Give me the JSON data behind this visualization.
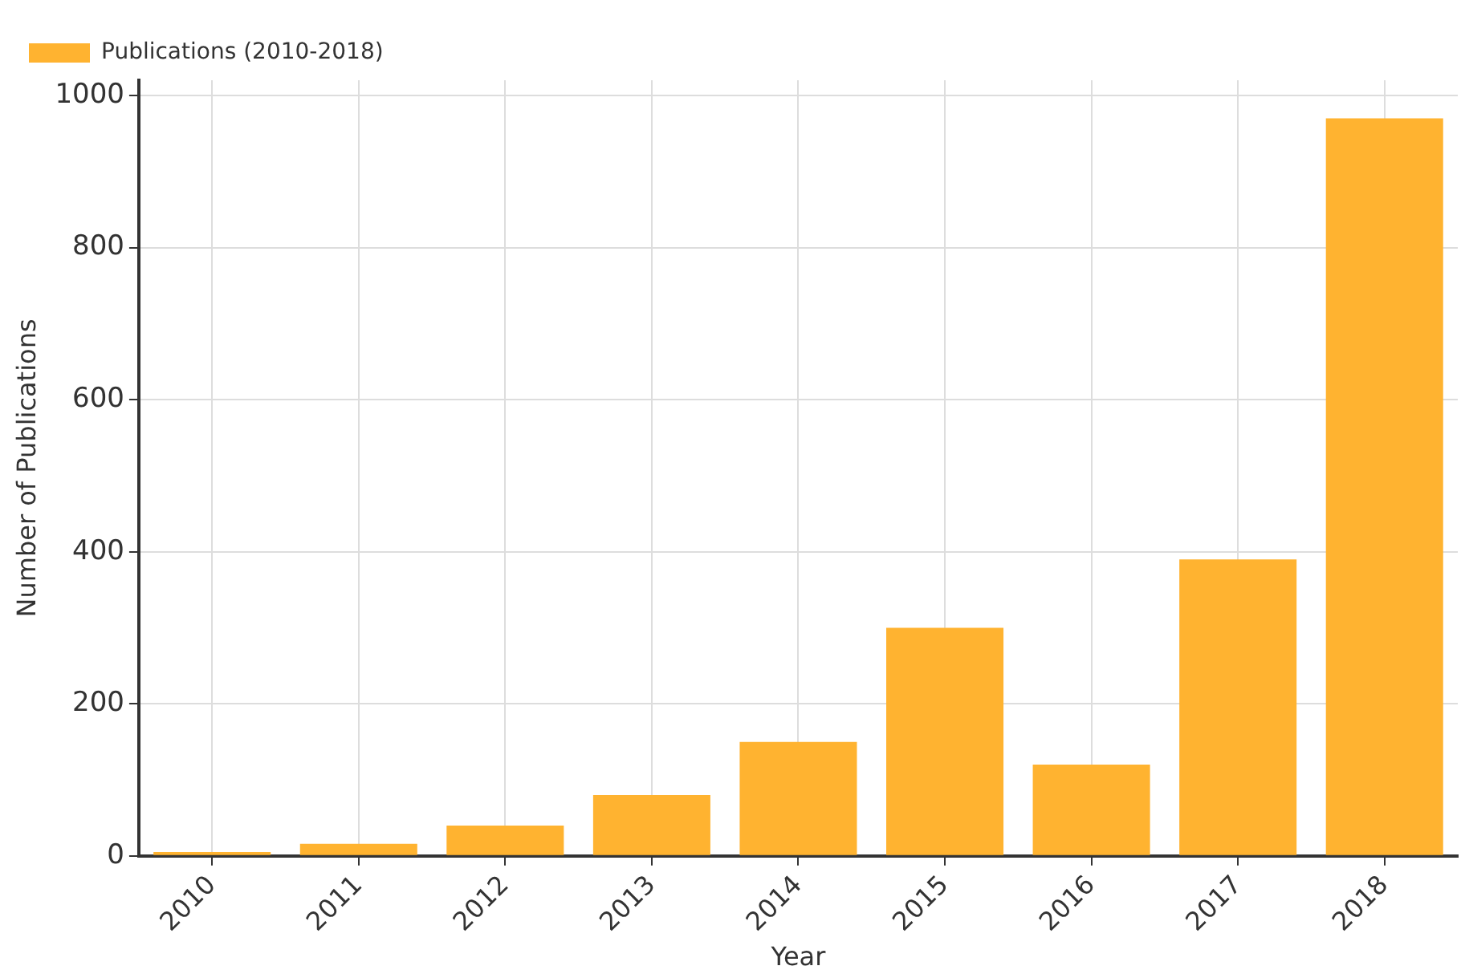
{
  "chart_data": {
    "type": "bar",
    "xlabel": "Year",
    "ylabel": "Number of Publications",
    "categories": [
      "2010",
      "2011",
      "2012",
      "2013",
      "2014",
      "2015",
      "2016",
      "2017",
      "2018"
    ],
    "series": [
      {
        "name": "Publications (2010-2018)",
        "color": "#ffb330",
        "values": [
          5,
          16,
          40,
          80,
          150,
          300,
          120,
          390,
          970
        ]
      }
    ],
    "ylim": [
      0,
      1020
    ],
    "yticks": [
      0,
      200,
      400,
      600,
      800,
      1000
    ],
    "grid": true,
    "legend": "top left"
  }
}
